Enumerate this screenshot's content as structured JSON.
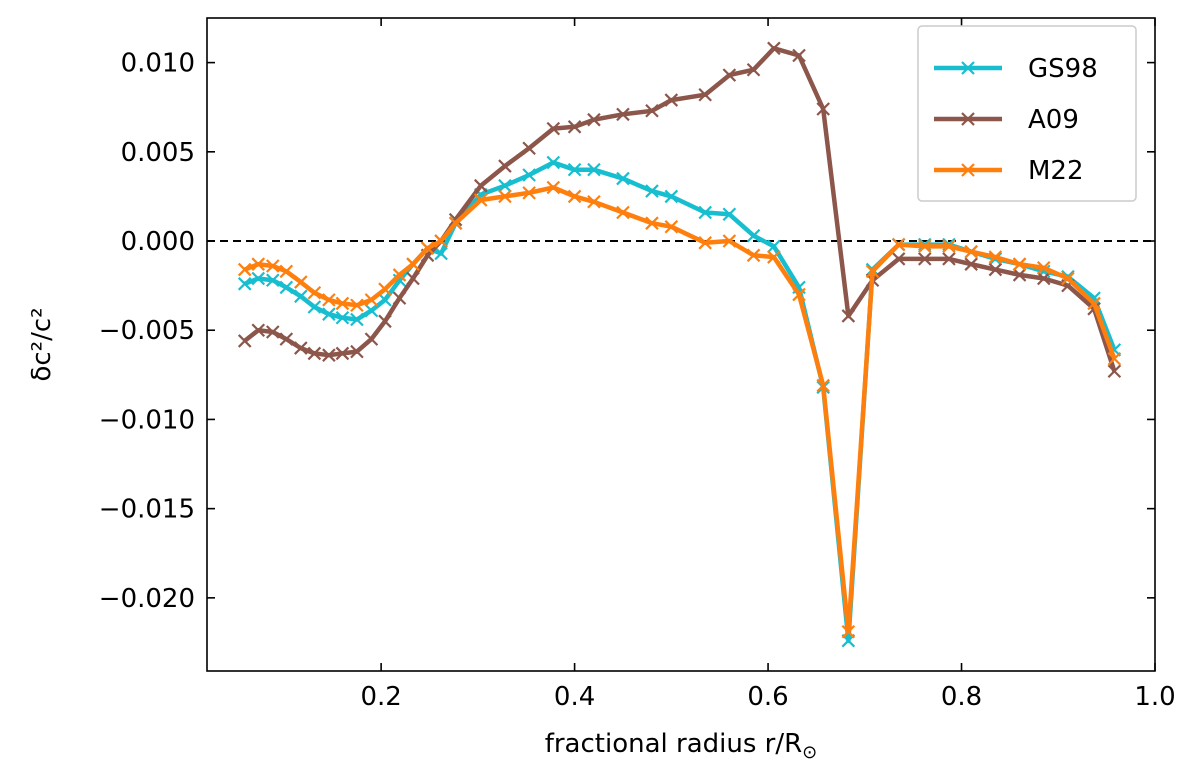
{
  "chart_data": {
    "type": "line",
    "title": "",
    "xlabel": "fractional radius r/R",
    "xlabel_symbol": "⊙",
    "ylabel": "δc²/c²",
    "xlim": [
      0.02,
      1.0
    ],
    "ylim": [
      -0.0241,
      0.0125
    ],
    "xticks": [
      0.2,
      0.4,
      0.6,
      0.8,
      1.0
    ],
    "xtick_labels": [
      "0.2",
      "0.4",
      "0.6",
      "0.8",
      "1.0"
    ],
    "yticks": [
      0.01,
      0.005,
      0.0,
      -0.005,
      -0.01,
      -0.015,
      -0.02
    ],
    "ytick_labels": [
      "0.010",
      "0.005",
      "0.000",
      "−0.005",
      "−0.010",
      "−0.015",
      "−0.020"
    ],
    "reference_line": {
      "y": 0.0,
      "style": "dashed",
      "color": "#000000"
    },
    "legend_position": "top-right",
    "x": [
      0.059,
      0.073,
      0.088,
      0.102,
      0.117,
      0.131,
      0.146,
      0.16,
      0.175,
      0.19,
      0.204,
      0.219,
      0.233,
      0.248,
      0.262,
      0.277,
      0.303,
      0.328,
      0.353,
      0.378,
      0.4,
      0.42,
      0.45,
      0.48,
      0.5,
      0.535,
      0.56,
      0.585,
      0.606,
      0.632,
      0.657,
      0.683,
      0.708,
      0.735,
      0.762,
      0.787,
      0.81,
      0.835,
      0.86,
      0.885,
      0.91,
      0.937,
      0.958
    ],
    "series": [
      {
        "name": "GS98",
        "color": "#17becf",
        "values": [
          -0.0024,
          -0.0021,
          -0.0022,
          -0.0026,
          -0.0031,
          -0.0037,
          -0.0041,
          -0.0043,
          -0.0044,
          -0.0039,
          -0.0033,
          -0.0022,
          -0.0013,
          -0.0004,
          -0.0007,
          0.001,
          0.0026,
          0.0031,
          0.0037,
          0.0044,
          0.004,
          0.004,
          0.0035,
          0.0028,
          0.0025,
          0.0016,
          0.0015,
          0.0003,
          -0.0003,
          -0.0026,
          -0.0082,
          -0.0224,
          -0.0016,
          -0.0002,
          -0.0002,
          -0.0002,
          -0.0006,
          -0.001,
          -0.0013,
          -0.0017,
          -0.002,
          -0.0032,
          -0.0061
        ]
      },
      {
        "name": "A09",
        "color": "#8c564b",
        "values": [
          -0.0056,
          -0.005,
          -0.0051,
          -0.0055,
          -0.006,
          -0.0063,
          -0.0064,
          -0.0063,
          -0.0062,
          -0.0055,
          -0.0045,
          -0.0032,
          -0.0021,
          -0.0008,
          0.0,
          0.0012,
          0.0031,
          0.0042,
          0.0052,
          0.0063,
          0.0064,
          0.0068,
          0.0071,
          0.0073,
          0.0079,
          0.0082,
          0.0093,
          0.0096,
          0.0108,
          0.0104,
          0.0074,
          -0.0042,
          -0.0022,
          -0.001,
          -0.001,
          -0.001,
          -0.0013,
          -0.0016,
          -0.0019,
          -0.0021,
          -0.0025,
          -0.0038,
          -0.0073
        ]
      },
      {
        "name": "M22",
        "color": "#ff7f0e",
        "values": [
          -0.0016,
          -0.0013,
          -0.0014,
          -0.0017,
          -0.0023,
          -0.0029,
          -0.0033,
          -0.0035,
          -0.0036,
          -0.0033,
          -0.0027,
          -0.0019,
          -0.0013,
          -0.0004,
          0.0,
          0.001,
          0.0023,
          0.0025,
          0.0027,
          0.003,
          0.0025,
          0.0022,
          0.0016,
          0.001,
          0.0008,
          -0.0001,
          0.0,
          -0.0008,
          -0.0009,
          -0.003,
          -0.0081,
          -0.0219,
          -0.0017,
          -0.0002,
          -0.0003,
          -0.0003,
          -0.0006,
          -0.0009,
          -0.0013,
          -0.0015,
          -0.0021,
          -0.0035,
          -0.0066
        ]
      }
    ]
  }
}
